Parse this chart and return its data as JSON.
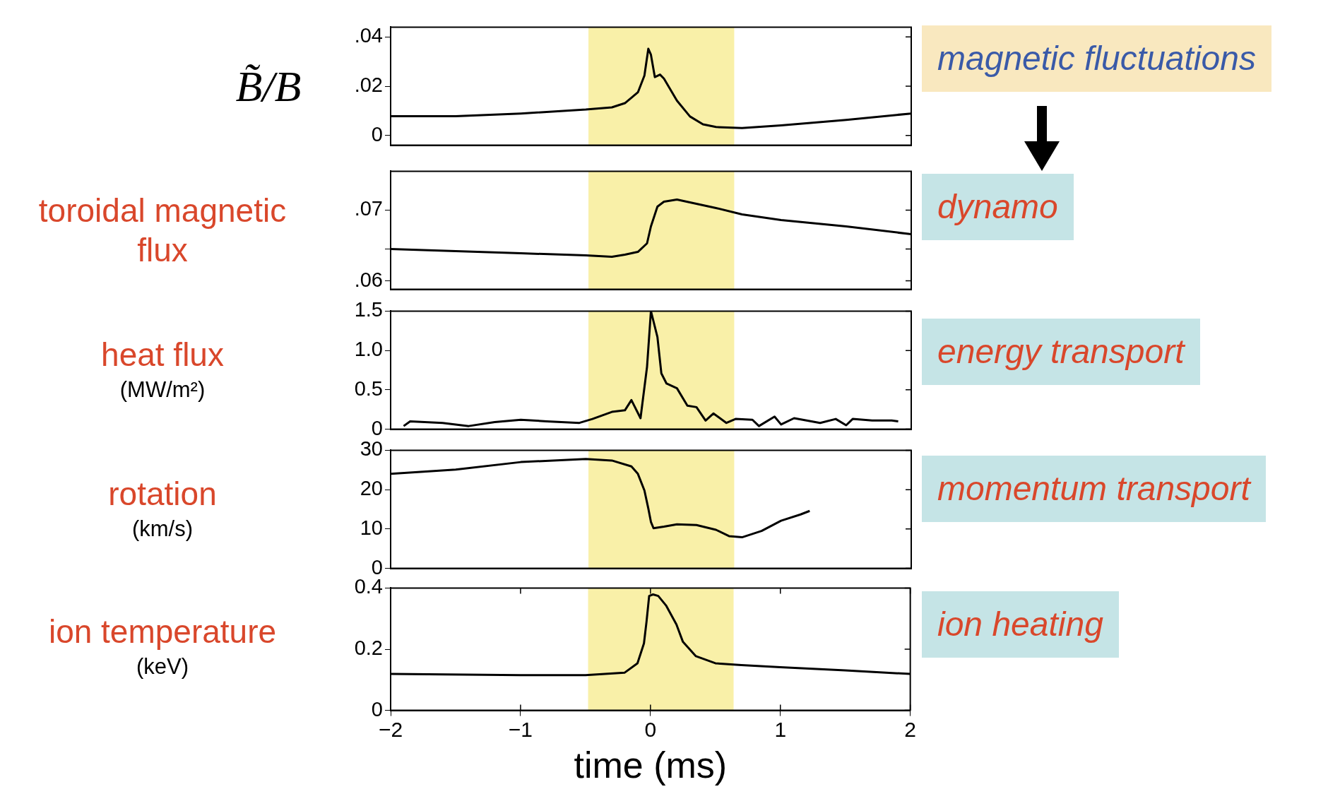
{
  "chart_data": [
    {
      "type": "line",
      "ylabel": "B̃/B",
      "annotations": [
        "magnetic fluctuations"
      ],
      "xlim": [
        -2,
        2
      ],
      "ylim": [
        -0.004,
        0.044
      ],
      "yticks": [
        0,
        {
          "value": 0.02,
          "label": ".02"
        },
        {
          "value": 0.04,
          "label": ".04"
        }
      ],
      "tick_labels": "y",
      "bands": [
        {
          "axis": "x",
          "from": -0.48,
          "to": 0.64,
          "color": "#f9f0a8"
        }
      ],
      "x": [
        -2,
        -1.5,
        -1,
        -0.5,
        -0.3,
        -0.2,
        -0.1,
        -0.05,
        -0.02,
        0,
        0.03,
        0.07,
        0.1,
        0.2,
        0.3,
        0.4,
        0.5,
        0.7,
        1,
        1.5,
        2
      ],
      "series": [
        {
          "color": "#000000",
          "values": [
            0.0078,
            0.0078,
            0.0089,
            0.0105,
            0.0114,
            0.0131,
            0.0175,
            0.0243,
            0.0352,
            0.0328,
            0.0237,
            0.0247,
            0.0231,
            0.0141,
            0.0077,
            0.0045,
            0.0034,
            0.003,
            0.0041,
            0.0063,
            0.0089
          ]
        }
      ]
    },
    {
      "type": "line",
      "ylabel": "toroidal magnetic flux",
      "annotations": [
        "dynamo"
      ],
      "xlim": [
        -2,
        2
      ],
      "ylim": [
        0.0588,
        0.0755
      ],
      "yticks": [
        {
          "value": 0.06,
          "label": ".06"
        },
        {
          "value": 0.0645,
          "label": null
        },
        {
          "value": 0.07,
          "label": ".07"
        }
      ],
      "tick_labels": "y",
      "bands": [
        {
          "axis": "x",
          "from": -0.48,
          "to": 0.64,
          "color": "#f9f0a8"
        }
      ],
      "x": [
        -2,
        -1.5,
        -1,
        -0.5,
        -0.3,
        -0.2,
        -0.1,
        -0.03,
        0,
        0.05,
        0.1,
        0.2,
        0.3,
        0.5,
        0.7,
        1,
        1.5,
        2
      ],
      "series": [
        {
          "color": "#000000",
          "values": [
            0.0645,
            0.0642,
            0.0639,
            0.0636,
            0.0634,
            0.0637,
            0.0641,
            0.0653,
            0.0677,
            0.0705,
            0.0712,
            0.0715,
            0.0711,
            0.0703,
            0.0694,
            0.0686,
            0.0677,
            0.0666
          ]
        }
      ]
    },
    {
      "type": "line",
      "ylabel": "heat flux (MW/m²)",
      "annotations": [
        "energy transport"
      ],
      "xlim": [
        -2,
        2
      ],
      "ylim": [
        0,
        1.5
      ],
      "yticks": [
        0,
        0.5,
        {
          "value": 1,
          "label": "1.0"
        },
        1.5
      ],
      "tick_labels": "y",
      "bands": [
        {
          "axis": "x",
          "from": -0.48,
          "to": 0.64,
          "color": "#f9f0a8"
        }
      ],
      "x": [
        -1.9,
        -1.85,
        -1.6,
        -1.4,
        -1.2,
        -1,
        -0.8,
        -0.55,
        -0.45,
        -0.3,
        -0.2,
        -0.15,
        -0.08,
        -0.03,
        0,
        0.05,
        0.08,
        0.12,
        0.2,
        0.28,
        0.35,
        0.42,
        0.48,
        0.58,
        0.65,
        0.78,
        0.83,
        0.95,
        1,
        1.1,
        1.3,
        1.42,
        1.5,
        1.55,
        1.7,
        1.85,
        1.9
      ],
      "series": [
        {
          "color": "#000000",
          "values": [
            0.04,
            0.1,
            0.08,
            0.04,
            0.09,
            0.12,
            0.1,
            0.08,
            0.13,
            0.22,
            0.24,
            0.37,
            0.14,
            0.79,
            1.5,
            1.17,
            0.71,
            0.58,
            0.52,
            0.3,
            0.28,
            0.11,
            0.2,
            0.08,
            0.13,
            0.12,
            0.04,
            0.16,
            0.06,
            0.14,
            0.08,
            0.13,
            0.05,
            0.13,
            0.11,
            0.11,
            0.1
          ]
        }
      ]
    },
    {
      "type": "line",
      "ylabel": "rotation (km/s)",
      "annotations": [
        "momentum transport"
      ],
      "xlim": [
        -2,
        2
      ],
      "ylim": [
        0,
        30
      ],
      "yticks": [
        0,
        10,
        20,
        30
      ],
      "tick_labels": "y",
      "bands": [
        {
          "axis": "x",
          "from": -0.48,
          "to": 0.64,
          "color": "#f9f0a8"
        }
      ],
      "x": [
        -2,
        -1.5,
        -1,
        -0.5,
        -0.3,
        -0.15,
        -0.1,
        -0.05,
        -0.02,
        0,
        0.02,
        0.1,
        0.2,
        0.35,
        0.5,
        0.6,
        0.7,
        0.85,
        1,
        1.15,
        1.22
      ],
      "series": [
        {
          "color": "#000000",
          "values": [
            24,
            25.1,
            27,
            27.8,
            27.4,
            25.9,
            24,
            19.8,
            15.2,
            11.8,
            10.2,
            10.6,
            11.2,
            11,
            9.8,
            8.2,
            7.9,
            9.5,
            12.1,
            13.7,
            14.6
          ]
        }
      ]
    },
    {
      "type": "line",
      "ylabel": "ion temperature (keV)",
      "xlabel": "time (ms)",
      "annotations": [
        "ion heating"
      ],
      "xlim": [
        -2,
        2
      ],
      "xticks": [
        {
          "value": -2,
          "label": "−2"
        },
        {
          "value": -1,
          "label": "−1"
        },
        0,
        1,
        2
      ],
      "ylim": [
        0,
        0.4
      ],
      "yticks": [
        0,
        0.2,
        0.4
      ],
      "bands": [
        {
          "axis": "x",
          "from": -0.48,
          "to": 0.64,
          "color": "#f9f0a8"
        }
      ],
      "x": [
        -2,
        -1,
        -0.5,
        -0.2,
        -0.1,
        -0.05,
        -0.03,
        -0.01,
        0.02,
        0.06,
        0.12,
        0.2,
        0.25,
        0.35,
        0.5,
        0.7,
        1,
        1.5,
        2
      ],
      "series": [
        {
          "color": "#000000",
          "values": [
            0.119,
            0.115,
            0.115,
            0.123,
            0.154,
            0.219,
            0.291,
            0.374,
            0.379,
            0.374,
            0.343,
            0.281,
            0.224,
            0.177,
            0.154,
            0.148,
            0.141,
            0.131,
            0.119
          ]
        }
      ]
    }
  ]
}
